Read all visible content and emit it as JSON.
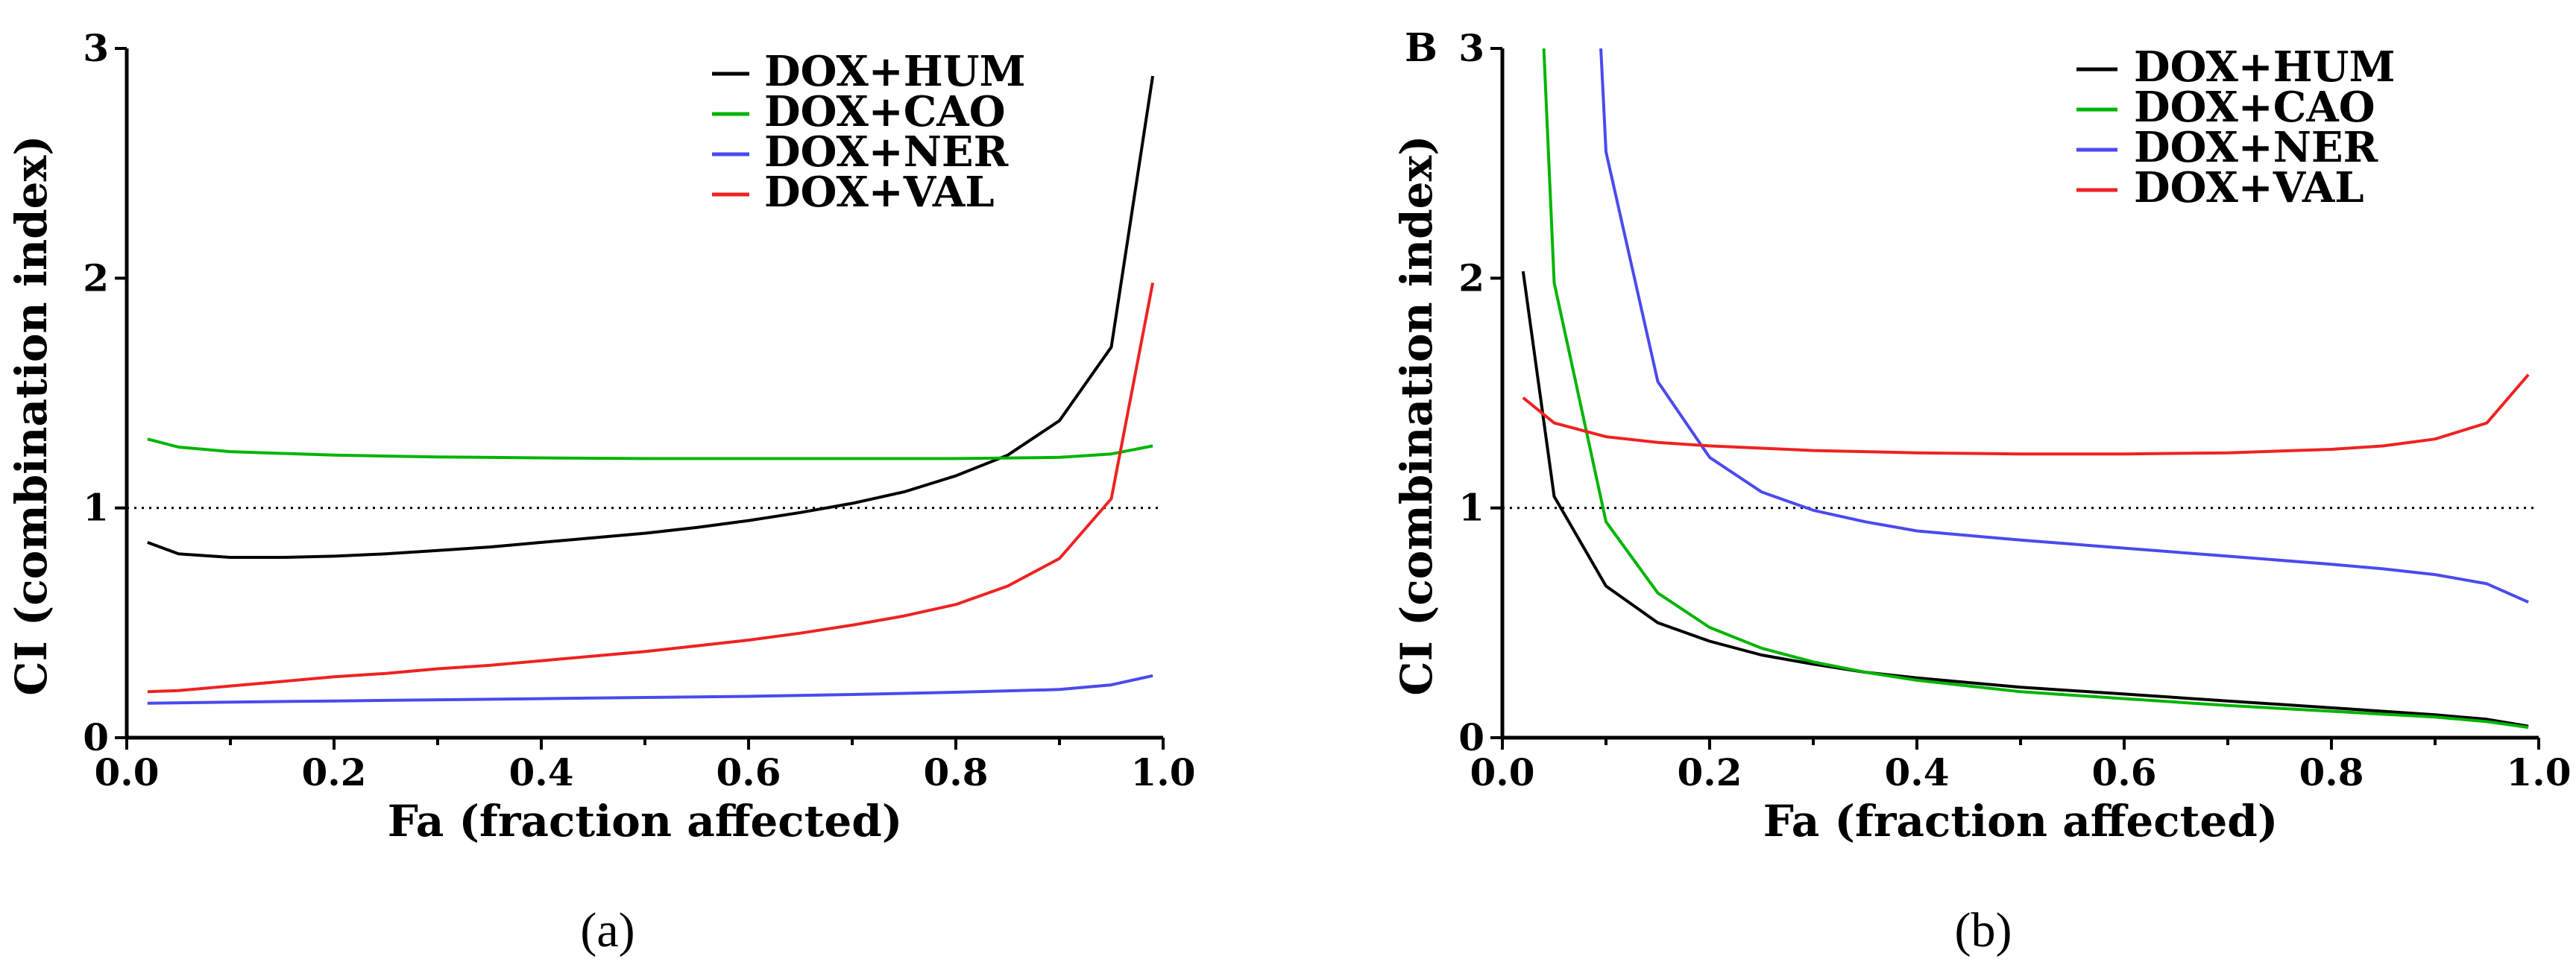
{
  "chart_data": [
    {
      "type": "line",
      "panel_label": "",
      "caption": "(a)",
      "title": "",
      "xlabel": "Fa (fraction affected)",
      "ylabel": "CI (combination index)",
      "xlim": [
        0,
        1.0
      ],
      "ylim": [
        0,
        3
      ],
      "xticks": [
        "0.0",
        "0.2",
        "0.4",
        "0.6",
        "0.8",
        "1.0"
      ],
      "yticks": [
        "0",
        "1",
        "2",
        "3"
      ],
      "reference_line": {
        "y": 1,
        "style": "dotted"
      },
      "legend_position": "top-right",
      "series": [
        {
          "name": "DOX+HUM",
          "color": "#000000",
          "points": [
            [
              0.02,
              0.85
            ],
            [
              0.05,
              0.8
            ],
            [
              0.1,
              0.785
            ],
            [
              0.15,
              0.785
            ],
            [
              0.2,
              0.79
            ],
            [
              0.25,
              0.8
            ],
            [
              0.3,
              0.815
            ],
            [
              0.35,
              0.83
            ],
            [
              0.4,
              0.85
            ],
            [
              0.45,
              0.87
            ],
            [
              0.5,
              0.89
            ],
            [
              0.55,
              0.915
            ],
            [
              0.6,
              0.945
            ],
            [
              0.65,
              0.98
            ],
            [
              0.7,
              1.02
            ],
            [
              0.75,
              1.07
            ],
            [
              0.8,
              1.14
            ],
            [
              0.85,
              1.23
            ],
            [
              0.9,
              1.38
            ],
            [
              0.95,
              1.7
            ],
            [
              0.99,
              2.88
            ]
          ]
        },
        {
          "name": "DOX+CAO",
          "color": "#00b400",
          "points": [
            [
              0.02,
              1.3
            ],
            [
              0.05,
              1.265
            ],
            [
              0.1,
              1.245
            ],
            [
              0.2,
              1.23
            ],
            [
              0.3,
              1.222
            ],
            [
              0.4,
              1.218
            ],
            [
              0.5,
              1.215
            ],
            [
              0.6,
              1.215
            ],
            [
              0.7,
              1.215
            ],
            [
              0.8,
              1.215
            ],
            [
              0.9,
              1.22
            ],
            [
              0.95,
              1.235
            ],
            [
              0.99,
              1.27
            ]
          ]
        },
        {
          "name": "DOX+NER",
          "color": "#4a4aee",
          "points": [
            [
              0.02,
              0.15
            ],
            [
              0.1,
              0.155
            ],
            [
              0.2,
              0.16
            ],
            [
              0.3,
              0.165
            ],
            [
              0.4,
              0.17
            ],
            [
              0.5,
              0.175
            ],
            [
              0.6,
              0.18
            ],
            [
              0.7,
              0.188
            ],
            [
              0.8,
              0.198
            ],
            [
              0.9,
              0.21
            ],
            [
              0.95,
              0.23
            ],
            [
              0.99,
              0.27
            ]
          ]
        },
        {
          "name": "DOX+VAL",
          "color": "#ee2222",
          "points": [
            [
              0.02,
              0.2
            ],
            [
              0.05,
              0.205
            ],
            [
              0.1,
              0.225
            ],
            [
              0.15,
              0.245
            ],
            [
              0.2,
              0.265
            ],
            [
              0.25,
              0.28
            ],
            [
              0.3,
              0.3
            ],
            [
              0.35,
              0.315
            ],
            [
              0.4,
              0.335
            ],
            [
              0.45,
              0.355
            ],
            [
              0.5,
              0.375
            ],
            [
              0.55,
              0.4
            ],
            [
              0.6,
              0.425
            ],
            [
              0.65,
              0.455
            ],
            [
              0.7,
              0.49
            ],
            [
              0.75,
              0.53
            ],
            [
              0.8,
              0.58
            ],
            [
              0.85,
              0.66
            ],
            [
              0.9,
              0.78
            ],
            [
              0.95,
              1.04
            ],
            [
              0.99,
              1.98
            ]
          ]
        }
      ]
    },
    {
      "type": "line",
      "panel_label": "B",
      "caption": "(b)",
      "title": "",
      "xlabel": "Fa (fraction affected)",
      "ylabel": "CI (combination index)",
      "xlim": [
        0,
        1.0
      ],
      "ylim": [
        0,
        3
      ],
      "xticks": [
        "0.0",
        "0.2",
        "0.4",
        "0.6",
        "0.8",
        "1.0"
      ],
      "yticks": [
        "0",
        "1",
        "2",
        "3"
      ],
      "reference_line": {
        "y": 1,
        "style": "dotted"
      },
      "legend_position": "top-right",
      "series": [
        {
          "name": "DOX+HUM",
          "color": "#000000",
          "points": [
            [
              0.02,
              2.03
            ],
            [
              0.05,
              1.05
            ],
            [
              0.1,
              0.66
            ],
            [
              0.15,
              0.5
            ],
            [
              0.2,
              0.42
            ],
            [
              0.25,
              0.36
            ],
            [
              0.3,
              0.32
            ],
            [
              0.35,
              0.285
            ],
            [
              0.4,
              0.26
            ],
            [
              0.5,
              0.22
            ],
            [
              0.6,
              0.19
            ],
            [
              0.7,
              0.16
            ],
            [
              0.8,
              0.13
            ],
            [
              0.9,
              0.1
            ],
            [
              0.95,
              0.08
            ],
            [
              0.99,
              0.05
            ]
          ]
        },
        {
          "name": "DOX+CAO",
          "color": "#00b400",
          "points": [
            [
              0.04,
              3.0
            ],
            [
              0.05,
              1.98
            ],
            [
              0.1,
              0.94
            ],
            [
              0.15,
              0.63
            ],
            [
              0.2,
              0.48
            ],
            [
              0.25,
              0.39
            ],
            [
              0.3,
              0.33
            ],
            [
              0.35,
              0.285
            ],
            [
              0.4,
              0.25
            ],
            [
              0.5,
              0.2
            ],
            [
              0.6,
              0.17
            ],
            [
              0.7,
              0.14
            ],
            [
              0.8,
              0.115
            ],
            [
              0.9,
              0.09
            ],
            [
              0.95,
              0.07
            ],
            [
              0.99,
              0.045
            ]
          ]
        },
        {
          "name": "DOX+NER",
          "color": "#4a4aee",
          "points": [
            [
              0.095,
              3.0
            ],
            [
              0.1,
              2.55
            ],
            [
              0.15,
              1.55
            ],
            [
              0.2,
              1.22
            ],
            [
              0.25,
              1.07
            ],
            [
              0.3,
              0.99
            ],
            [
              0.35,
              0.94
            ],
            [
              0.4,
              0.9
            ],
            [
              0.5,
              0.86
            ],
            [
              0.6,
              0.825
            ],
            [
              0.7,
              0.79
            ],
            [
              0.8,
              0.755
            ],
            [
              0.85,
              0.735
            ],
            [
              0.9,
              0.71
            ],
            [
              0.95,
              0.67
            ],
            [
              0.99,
              0.59
            ]
          ]
        },
        {
          "name": "DOX+VAL",
          "color": "#ee2222",
          "points": [
            [
              0.02,
              1.48
            ],
            [
              0.05,
              1.37
            ],
            [
              0.1,
              1.31
            ],
            [
              0.15,
              1.285
            ],
            [
              0.2,
              1.27
            ],
            [
              0.3,
              1.25
            ],
            [
              0.4,
              1.24
            ],
            [
              0.5,
              1.235
            ],
            [
              0.6,
              1.235
            ],
            [
              0.7,
              1.24
            ],
            [
              0.8,
              1.255
            ],
            [
              0.85,
              1.27
            ],
            [
              0.9,
              1.3
            ],
            [
              0.95,
              1.37
            ],
            [
              0.99,
              1.58
            ]
          ]
        }
      ]
    }
  ]
}
